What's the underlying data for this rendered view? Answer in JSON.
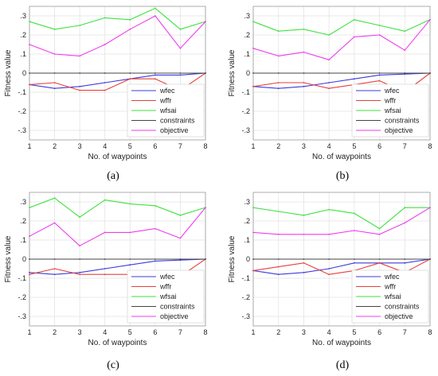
{
  "colors": {
    "wfec": "#3b3bdc",
    "wffr": "#e8403c",
    "wfsai": "#3ee23e",
    "constraints": "#444444",
    "objective": "#ee3cee"
  },
  "chart_data": [
    {
      "type": "line",
      "panel_label": "(a)",
      "xlabel": "No. of waypoints",
      "ylabel": "Fitness value",
      "xlim": [
        1,
        8
      ],
      "ylim": [
        -0.35,
        0.35
      ],
      "xticks": [
        1,
        2,
        3,
        4,
        5,
        6,
        7,
        8
      ],
      "yticks": [
        -0.3,
        -0.2,
        -0.1,
        0,
        0.1,
        0.2,
        0.3
      ],
      "grid": true,
      "legend_position": "lower-right",
      "x": [
        1,
        2,
        3,
        4,
        5,
        6,
        7,
        8
      ],
      "series": [
        {
          "name": "wfec",
          "values": [
            -0.06,
            -0.08,
            -0.07,
            -0.05,
            -0.03,
            -0.01,
            -0.01,
            0.0
          ]
        },
        {
          "name": "wffr",
          "values": [
            -0.06,
            -0.05,
            -0.09,
            -0.09,
            -0.03,
            -0.03,
            -0.09,
            0.0
          ]
        },
        {
          "name": "wfsai",
          "values": [
            0.27,
            0.23,
            0.25,
            0.29,
            0.28,
            0.34,
            0.23,
            0.27
          ]
        },
        {
          "name": "constraints",
          "values": [
            0,
            0,
            0,
            0,
            0,
            0,
            0,
            0
          ]
        },
        {
          "name": "objective",
          "values": [
            0.15,
            0.1,
            0.09,
            0.15,
            0.23,
            0.3,
            0.13,
            0.27
          ]
        }
      ]
    },
    {
      "type": "line",
      "panel_label": "(b)",
      "xlabel": "No. of waypoints",
      "ylabel": "Fitness value",
      "xlim": [
        1,
        8
      ],
      "ylim": [
        -0.35,
        0.35
      ],
      "xticks": [
        1,
        2,
        3,
        4,
        5,
        6,
        7,
        8
      ],
      "yticks": [
        -0.3,
        -0.2,
        -0.1,
        0,
        0.1,
        0.2,
        0.3
      ],
      "grid": true,
      "legend_position": "lower-right",
      "x": [
        1,
        2,
        3,
        4,
        5,
        6,
        7,
        8
      ],
      "series": [
        {
          "name": "wfec",
          "values": [
            -0.07,
            -0.08,
            -0.07,
            -0.05,
            -0.03,
            -0.01,
            -0.005,
            0.0
          ]
        },
        {
          "name": "wffr",
          "values": [
            -0.07,
            -0.05,
            -0.05,
            -0.08,
            -0.06,
            -0.04,
            -0.1,
            0.0
          ]
        },
        {
          "name": "wfsai",
          "values": [
            0.27,
            0.22,
            0.23,
            0.2,
            0.28,
            0.25,
            0.22,
            0.28
          ]
        },
        {
          "name": "constraints",
          "values": [
            0,
            0,
            0,
            0,
            0,
            0,
            0,
            0
          ]
        },
        {
          "name": "objective",
          "values": [
            0.13,
            0.09,
            0.11,
            0.07,
            0.19,
            0.2,
            0.12,
            0.28
          ]
        }
      ]
    },
    {
      "type": "line",
      "panel_label": "(c)",
      "xlabel": "No. of waypoints",
      "ylabel": "Fitness value",
      "xlim": [
        1,
        8
      ],
      "ylim": [
        -0.35,
        0.35
      ],
      "xticks": [
        1,
        2,
        3,
        4,
        5,
        6,
        7,
        8
      ],
      "yticks": [
        -0.3,
        -0.2,
        -0.1,
        0,
        0.1,
        0.2,
        0.3
      ],
      "grid": true,
      "legend_position": "lower-right",
      "x": [
        1,
        2,
        3,
        4,
        5,
        6,
        7,
        8
      ],
      "series": [
        {
          "name": "wfec",
          "values": [
            -0.07,
            -0.08,
            -0.07,
            -0.05,
            -0.03,
            -0.01,
            -0.005,
            0.0
          ]
        },
        {
          "name": "wffr",
          "values": [
            -0.08,
            -0.05,
            -0.08,
            -0.08,
            -0.08,
            -0.09,
            -0.09,
            0.0
          ]
        },
        {
          "name": "wfsai",
          "values": [
            0.27,
            0.32,
            0.22,
            0.31,
            0.29,
            0.28,
            0.23,
            0.27
          ]
        },
        {
          "name": "constraints",
          "values": [
            0,
            0,
            0,
            0,
            0,
            0,
            0,
            0
          ]
        },
        {
          "name": "objective",
          "values": [
            0.12,
            0.19,
            0.07,
            0.14,
            0.14,
            0.16,
            0.11,
            0.27
          ]
        }
      ]
    },
    {
      "type": "line",
      "panel_label": "(d)",
      "xlabel": "No. of waypoints",
      "ylabel": "Fitness value",
      "xlim": [
        1,
        8
      ],
      "ylim": [
        -0.35,
        0.35
      ],
      "xticks": [
        1,
        2,
        3,
        4,
        5,
        6,
        7,
        8
      ],
      "yticks": [
        -0.3,
        -0.2,
        -0.1,
        0,
        0.1,
        0.2,
        0.3
      ],
      "grid": true,
      "legend_position": "lower-right",
      "x": [
        1,
        2,
        3,
        4,
        5,
        6,
        7,
        8
      ],
      "series": [
        {
          "name": "wfec",
          "values": [
            -0.06,
            -0.08,
            -0.07,
            -0.05,
            -0.02,
            -0.02,
            -0.02,
            0.0
          ]
        },
        {
          "name": "wffr",
          "values": [
            -0.06,
            -0.04,
            -0.02,
            -0.08,
            -0.06,
            -0.02,
            -0.07,
            0.0
          ]
        },
        {
          "name": "wfsai",
          "values": [
            0.27,
            0.25,
            0.23,
            0.26,
            0.24,
            0.16,
            0.27,
            0.27
          ]
        },
        {
          "name": "constraints",
          "values": [
            0,
            0,
            0,
            0,
            0,
            0,
            0,
            0
          ]
        },
        {
          "name": "objective",
          "values": [
            0.14,
            0.13,
            0.13,
            0.13,
            0.15,
            0.13,
            0.19,
            0.27
          ]
        }
      ]
    }
  ]
}
